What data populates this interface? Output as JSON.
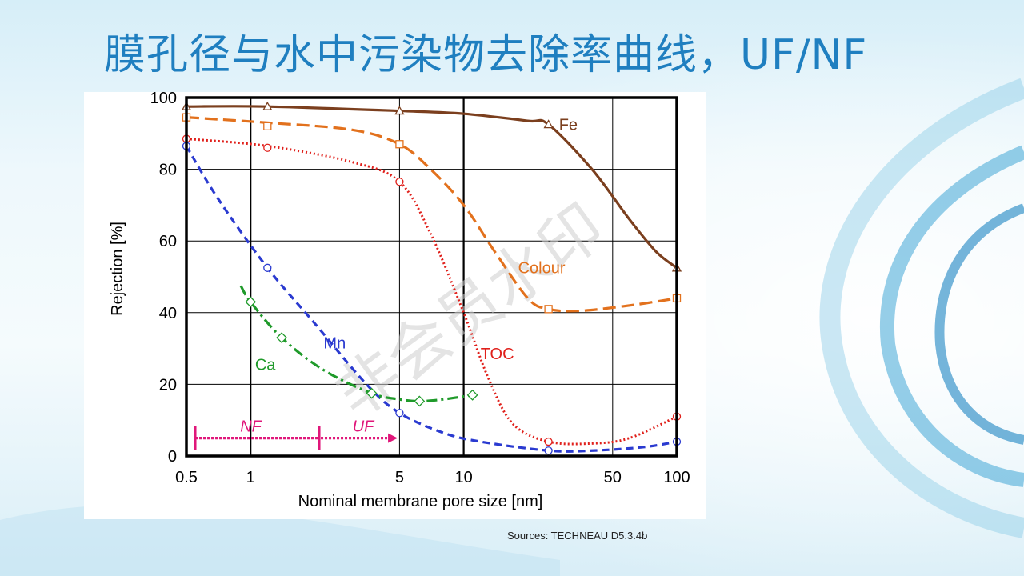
{
  "slide": {
    "title": "膜孔径与水中污染物去除率曲线，UF/NF",
    "source": "Sources:  TECHNEAU  D5.3.4b",
    "watermark": "非会员水印"
  },
  "chart_data": {
    "type": "line",
    "xlabel": "Nominal membrane pore size [nm]",
    "ylabel": "Rejection [%]",
    "x_scale": "log",
    "xlim": [
      0.5,
      100
    ],
    "ylim": [
      0,
      100
    ],
    "x_ticks": [
      0.5,
      1,
      5,
      10,
      50,
      100
    ],
    "x_tick_labels": [
      "0.5",
      "1",
      "5",
      "10",
      "50",
      "100"
    ],
    "y_ticks": [
      0,
      20,
      40,
      60,
      80,
      100
    ],
    "y_tick_labels": [
      "0",
      "20",
      "40",
      "60",
      "80",
      "100"
    ],
    "grid": true,
    "series": [
      {
        "name": "Fe",
        "color": "#7b3f1e",
        "dash": "solid",
        "marker": "triangle",
        "points": [
          [
            0.5,
            97.5
          ],
          [
            1.2,
            97.5
          ],
          [
            5,
            96.3
          ],
          [
            25,
            92.5
          ],
          [
            100,
            52.5
          ]
        ],
        "curve": [
          [
            0.5,
            97.5
          ],
          [
            1.2,
            97.5
          ],
          [
            5,
            96.3
          ],
          [
            10,
            95.5
          ],
          [
            20,
            93.5
          ],
          [
            25,
            92.5
          ],
          [
            40,
            80
          ],
          [
            60,
            66
          ],
          [
            80,
            57
          ],
          [
            100,
            52.5
          ]
        ]
      },
      {
        "name": "Colour",
        "color": "#e2711d",
        "dash": "long-dash",
        "marker": "square",
        "points": [
          [
            0.5,
            94.5
          ],
          [
            1.2,
            92
          ],
          [
            5,
            87
          ],
          [
            25,
            41
          ],
          [
            100,
            44
          ]
        ],
        "curve": [
          [
            0.5,
            94.5
          ],
          [
            1.2,
            93
          ],
          [
            3,
            91
          ],
          [
            5,
            87
          ],
          [
            7,
            80
          ],
          [
            10,
            70
          ],
          [
            14,
            57
          ],
          [
            20,
            44
          ],
          [
            25,
            41
          ],
          [
            35,
            40.5
          ],
          [
            60,
            42
          ],
          [
            100,
            44
          ]
        ]
      },
      {
        "name": "TOC",
        "color": "#e0201b",
        "dash": "dotted",
        "marker": "circle",
        "points": [
          [
            0.5,
            88.5
          ],
          [
            1.2,
            86
          ],
          [
            5,
            76.5
          ],
          [
            25,
            4
          ],
          [
            100,
            11
          ]
        ],
        "curve": [
          [
            0.5,
            88.5
          ],
          [
            1.2,
            86.5
          ],
          [
            3,
            82
          ],
          [
            5,
            76.5
          ],
          [
            7,
            62
          ],
          [
            10,
            40
          ],
          [
            13,
            22
          ],
          [
            17,
            9
          ],
          [
            25,
            4
          ],
          [
            40,
            3.5
          ],
          [
            60,
            5
          ],
          [
            100,
            11
          ]
        ]
      },
      {
        "name": "Mn",
        "color": "#2a3ad0",
        "dash": "dashed",
        "marker": "circle",
        "points": [
          [
            0.5,
            86.5
          ],
          [
            1.2,
            52.5
          ],
          [
            5,
            12
          ],
          [
            25,
            1.5
          ],
          [
            100,
            4
          ]
        ],
        "curve": [
          [
            0.5,
            86.5
          ],
          [
            0.7,
            72
          ],
          [
            1.2,
            52.5
          ],
          [
            2,
            37
          ],
          [
            3.5,
            20
          ],
          [
            5,
            12
          ],
          [
            8,
            6.5
          ],
          [
            12,
            4
          ],
          [
            25,
            1.5
          ],
          [
            40,
            1.5
          ],
          [
            70,
            2.5
          ],
          [
            100,
            4
          ]
        ]
      },
      {
        "name": "Ca",
        "color": "#1f9a2a",
        "dash": "dash-dot",
        "marker": "diamond",
        "points": [
          [
            1,
            43
          ],
          [
            1.4,
            33
          ],
          [
            3.7,
            17.5
          ],
          [
            6.2,
            15.3
          ],
          [
            11,
            17
          ]
        ],
        "curve": [
          [
            0.9,
            47.5
          ],
          [
            1,
            43
          ],
          [
            1.4,
            33
          ],
          [
            2.2,
            24
          ],
          [
            3.7,
            17.5
          ],
          [
            5,
            15.8
          ],
          [
            6.2,
            15.3
          ],
          [
            8,
            15.8
          ],
          [
            11,
            17
          ]
        ]
      }
    ],
    "annotations": [
      {
        "text": "NF",
        "x_from": 0.55,
        "x_to": 2.1,
        "y": 5,
        "color": "#e0177a"
      },
      {
        "text": "UF",
        "x_from": 2.1,
        "x_to": 4.9,
        "y": 5,
        "color": "#e0177a"
      }
    ]
  }
}
